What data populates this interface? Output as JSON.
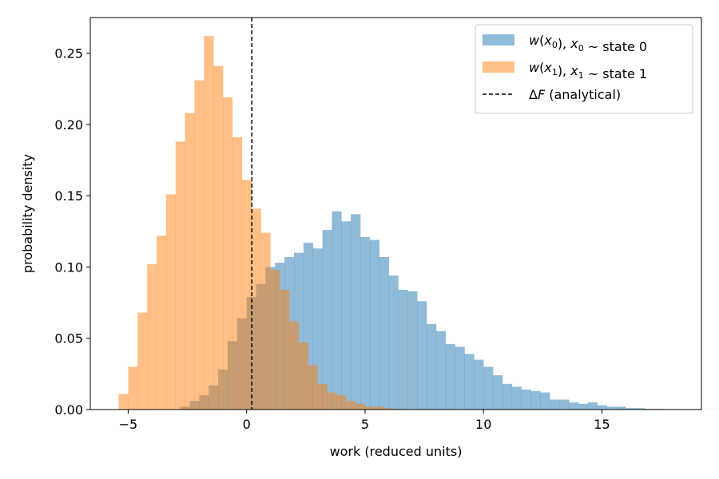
{
  "chart_data": {
    "type": "histogram",
    "xlabel": "work (reduced units)",
    "ylabel": "probability density",
    "xlim": [
      -6.6,
      19.2
    ],
    "ylim": [
      0,
      0.275
    ],
    "x_ticks": [
      -5,
      0,
      5,
      10,
      15
    ],
    "x_tick_labels": [
      "−5",
      "0",
      "5",
      "10",
      "15"
    ],
    "y_ticks": [
      0.0,
      0.05,
      0.1,
      0.15,
      0.2,
      0.25
    ],
    "y_tick_labels": [
      "0.00",
      "0.05",
      "0.10",
      "0.15",
      "0.20",
      "0.25"
    ],
    "grid": false,
    "legend_position": "top-right",
    "series": [
      {
        "name": "w(x0), x0 ~ state 0",
        "legend_parts": [
          {
            "t": "w",
            "it": true
          },
          {
            "t": "("
          },
          {
            "t": "x",
            "it": true
          },
          {
            "t": "0",
            "sub": true
          },
          {
            "t": "), "
          },
          {
            "t": "x",
            "it": true
          },
          {
            "t": "0",
            "sub": true
          },
          {
            "t": " ~  state 0"
          }
        ],
        "color": "#1f77b4",
        "opacity": 0.5,
        "bin_start": -2.8,
        "bin_width": 0.4,
        "values": [
          0.002,
          0.006,
          0.01,
          0.017,
          0.028,
          0.048,
          0.064,
          0.079,
          0.088,
          0.1,
          0.103,
          0.107,
          0.11,
          0.117,
          0.113,
          0.126,
          0.139,
          0.132,
          0.137,
          0.121,
          0.119,
          0.107,
          0.094,
          0.084,
          0.083,
          0.076,
          0.06,
          0.055,
          0.046,
          0.044,
          0.039,
          0.035,
          0.03,
          0.024,
          0.018,
          0.016,
          0.014,
          0.013,
          0.012,
          0.007,
          0.007,
          0.005,
          0.004,
          0.005,
          0.003,
          0.002,
          0.002,
          0.001,
          0.001,
          0.0005,
          0.0005,
          0.0003,
          0.0003,
          0.0002,
          0.0002,
          0.0001,
          0.0001
        ]
      },
      {
        "name": "w(x1), x1 ~ state 1",
        "legend_parts": [
          {
            "t": "w",
            "it": true
          },
          {
            "t": "("
          },
          {
            "t": "x",
            "it": true
          },
          {
            "t": "1",
            "sub": true
          },
          {
            "t": "), "
          },
          {
            "t": "x",
            "it": true
          },
          {
            "t": "1",
            "sub": true
          },
          {
            "t": " ~  state 1"
          }
        ],
        "color": "#ff7f0e",
        "opacity": 0.5,
        "bin_start": -5.4,
        "bin_width": 0.4,
        "values": [
          0.011,
          0.03,
          0.068,
          0.102,
          0.122,
          0.151,
          0.188,
          0.208,
          0.231,
          0.262,
          0.241,
          0.219,
          0.191,
          0.161,
          0.141,
          0.124,
          0.098,
          0.084,
          0.062,
          0.047,
          0.031,
          0.018,
          0.012,
          0.01,
          0.006,
          0.004,
          0.002,
          0.002,
          0.001
        ]
      }
    ],
    "annotations": [
      {
        "type": "vline",
        "x": 0.22,
        "style": "dashed",
        "color": "#000000",
        "name": "ΔF (analytical)",
        "legend_parts": [
          {
            "t": "Δ"
          },
          {
            "t": "F",
            "it": true
          },
          {
            "t": " (analytical)"
          }
        ]
      }
    ]
  }
}
